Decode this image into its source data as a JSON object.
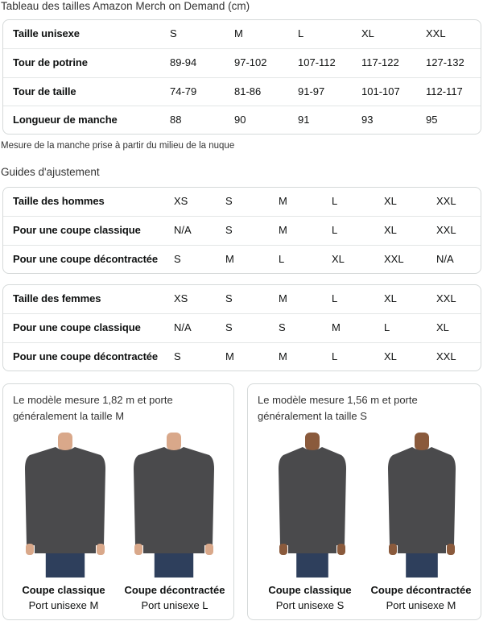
{
  "title": "Tableau des tailles Amazon Merch on Demand (cm)",
  "size_table": {
    "rows": [
      [
        "Taille unisexe",
        "S",
        "M",
        "L",
        "XL",
        "XXL"
      ],
      [
        "Tour de potrine",
        "89-94",
        "97-102",
        "107-112",
        "117-122",
        "127-132"
      ],
      [
        "Tour de taille",
        "74-79",
        "81-86",
        "91-97",
        "101-107",
        "112-117"
      ],
      [
        "Longueur de manche",
        "88",
        "90",
        "91",
        "93",
        "95"
      ]
    ]
  },
  "sleeve_note": "Mesure de la manche prise à partir du milieu de la nuque",
  "fit_title": "Guides d'ajustement",
  "men_table": {
    "rows": [
      [
        "Taille des hommes",
        "XS",
        "S",
        "M",
        "L",
        "XL",
        "XXL"
      ],
      [
        "Pour une coupe classique",
        "N/A",
        "S",
        "M",
        "L",
        "XL",
        "XXL"
      ],
      [
        "Pour une coupe décontractée",
        "S",
        "M",
        "L",
        "XL",
        "XXL",
        "N/A"
      ]
    ]
  },
  "women_table": {
    "rows": [
      [
        "Taille des femmes",
        "XS",
        "S",
        "M",
        "L",
        "XL",
        "XXL"
      ],
      [
        "Pour une coupe classique",
        "N/A",
        "S",
        "S",
        "M",
        "L",
        "XL"
      ],
      [
        "Pour une coupe décontractée",
        "S",
        "M",
        "M",
        "L",
        "XL",
        "XXL"
      ]
    ]
  },
  "cards": [
    {
      "text": "Le modèle mesure 1,82 m et porte généralement la taille M",
      "models": [
        {
          "fit": "Coupe classique",
          "size": "Port unisexe M"
        },
        {
          "fit": "Coupe décontractée",
          "size": "Port unisexe L"
        }
      ]
    },
    {
      "text": "Le modèle mesure 1,56 m et porte généralement la taille S",
      "models": [
        {
          "fit": "Coupe classique",
          "size": "Port unisexe S"
        },
        {
          "fit": "Coupe décontractée",
          "size": "Port unisexe M"
        }
      ]
    }
  ],
  "colors": {
    "shirt": "#4a4a4c",
    "jeans": "#2e3f5c",
    "border": "#d5d9d9"
  }
}
